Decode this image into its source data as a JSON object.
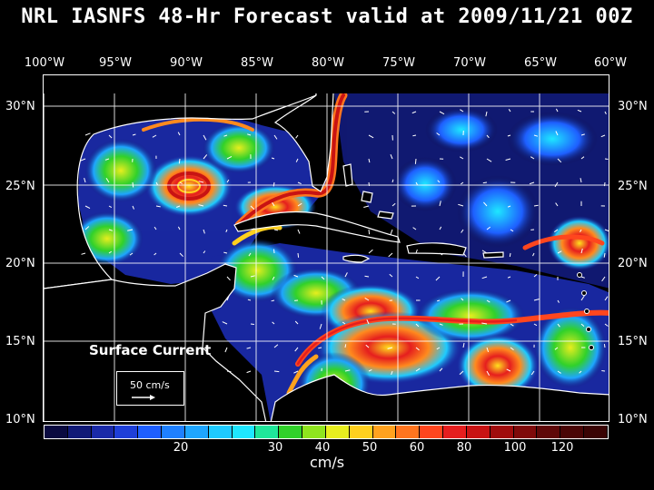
{
  "title": "NRL IASNFS  48-Hr Forecast valid at 2009/11/21 00Z",
  "lon_labels": [
    "100°W",
    "95°W",
    "90°W",
    "85°W",
    "80°W",
    "75°W",
    "70°W",
    "65°W",
    "60°W"
  ],
  "lat_labels": [
    "30°N",
    "25°N",
    "20°N",
    "15°N",
    "10°N"
  ],
  "overlay": {
    "surface_label": "Surface Current",
    "legend_vector": "50 cm/s"
  },
  "colorbar": {
    "colors": [
      "#0a0a40",
      "#111a77",
      "#1a2aa8",
      "#1e3fd8",
      "#1e5fff",
      "#1e80ff",
      "#1ea6ff",
      "#1ecbff",
      "#1ee7ff",
      "#1fe79a",
      "#31d12a",
      "#8fe51e",
      "#e7ee1e",
      "#ffd01e",
      "#ffa21e",
      "#ff751e",
      "#ff461e",
      "#e51e1e",
      "#c81313",
      "#a00d0d",
      "#7f0a0a",
      "#5f0808",
      "#4a0606",
      "#3a0404"
    ],
    "tick_labels": [
      "20",
      "30",
      "40",
      "50",
      "60",
      "80",
      "100",
      "120"
    ],
    "unit": "cm/s"
  },
  "map": {
    "region": "Gulf of Mexico, Caribbean Sea and western Atlantic",
    "field": "surface current speed",
    "lon_range": [
      -100,
      -60
    ],
    "lat_range": [
      10,
      31
    ]
  }
}
